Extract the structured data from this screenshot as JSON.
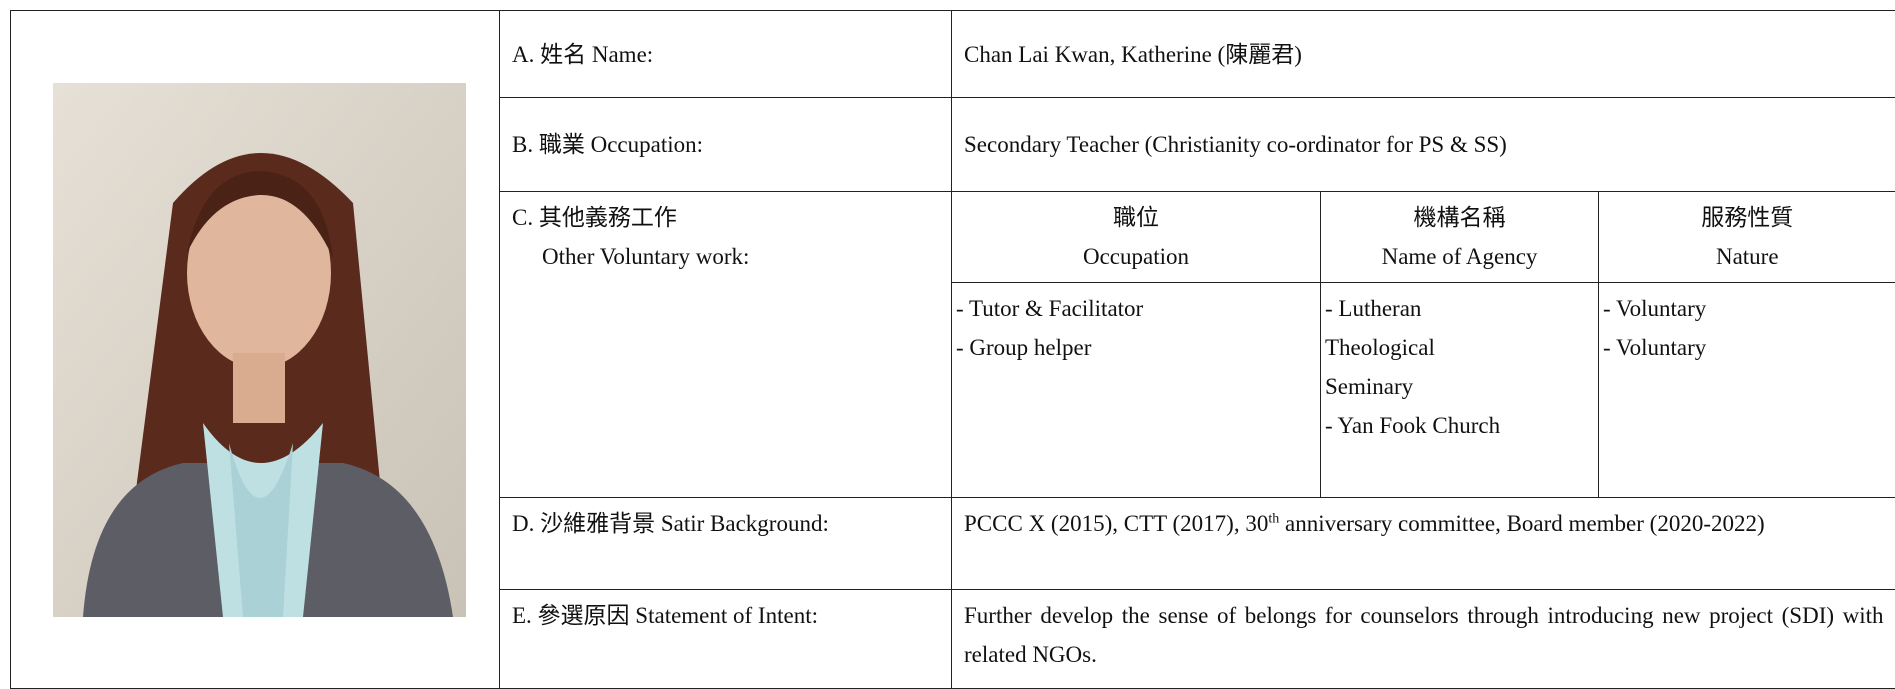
{
  "rows": {
    "a": {
      "label": "A. 姓名 Name:",
      "value": "Chan Lai Kwan, Katherine (陳麗君)"
    },
    "b": {
      "label": "B. 職業 Occupation:",
      "value": "Secondary Teacher (Christianity co-ordinator for PS & SS)"
    },
    "c": {
      "label": [
        "C. 其他義務工作",
        "Other Voluntary work:"
      ],
      "headers": [
        [
          "職位",
          "Occupation"
        ],
        [
          "機構名稱",
          "Name of Agency"
        ],
        [
          "服務性質",
          "Nature"
        ]
      ],
      "columns": [
        [
          "- Tutor & Facilitator",
          "- Group helper"
        ],
        [
          "- Lutheran",
          "Theological",
          "Seminary",
          "- Yan Fook Church"
        ],
        [
          "- Voluntary",
          "- Voluntary"
        ]
      ]
    },
    "d": {
      "label": "D. 沙維雅背景 Satir Background:",
      "value_before": "PCCC X (2015), CTT (2017), 30",
      "value_sup": "th",
      "value_after": " anniversary committee, Board member (2020-2022)"
    },
    "e": {
      "label": "E. 參選原因 Statement of Intent:",
      "value": "Further develop the sense of belongs for counselors through introducing new project (SDI) with related NGOs."
    }
  }
}
